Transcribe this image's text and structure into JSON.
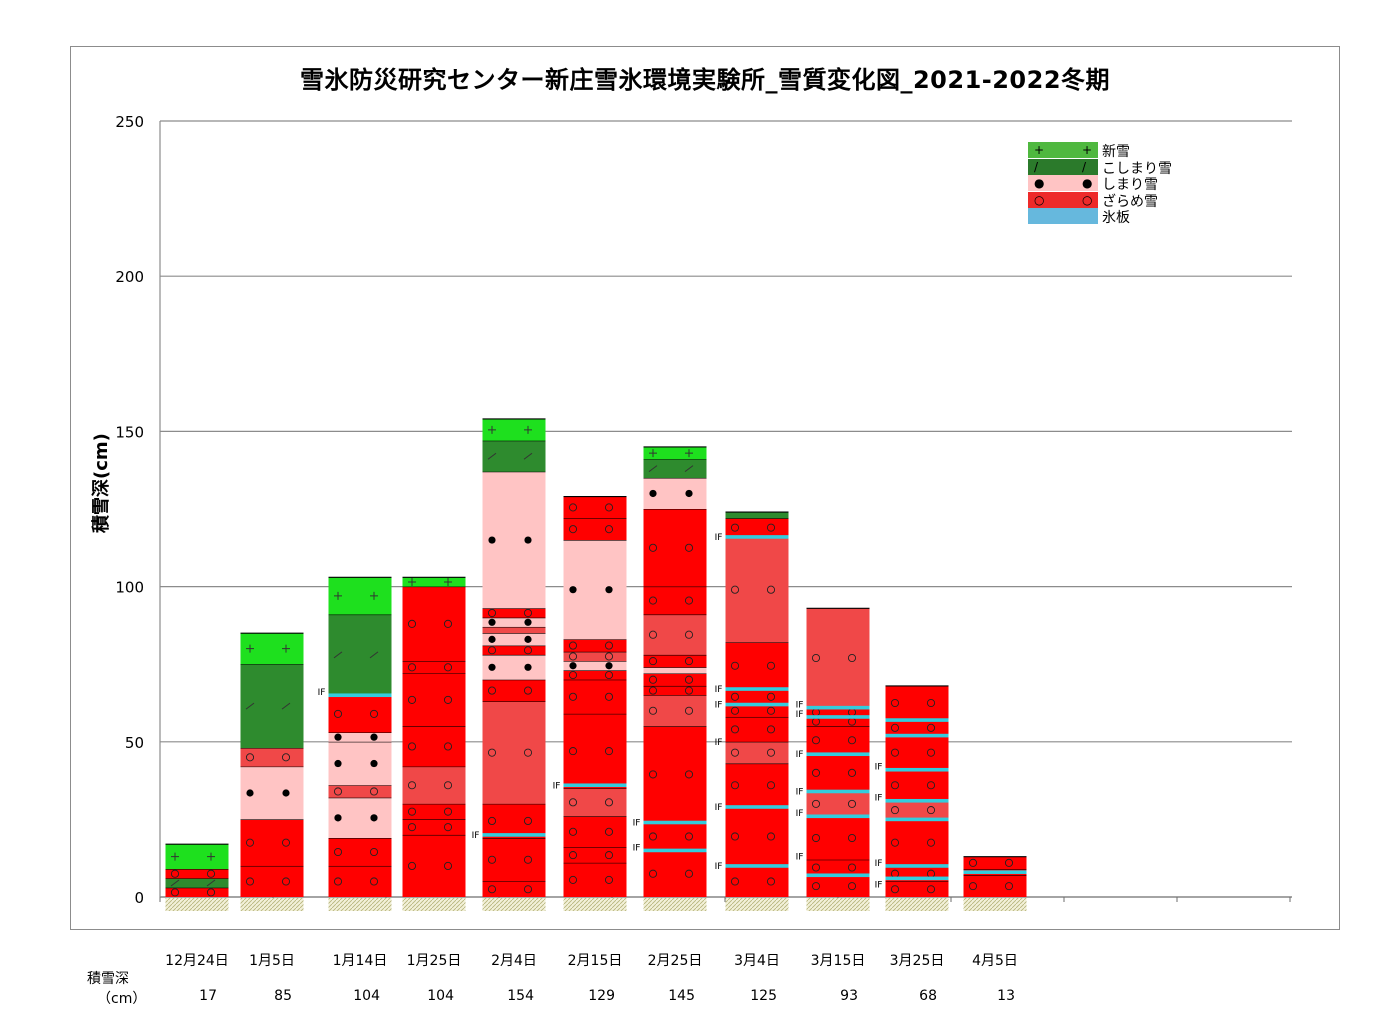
{
  "title": "雪氷防災研究センター新庄雪氷環境実験所_雪質変化図_2021-2022冬期",
  "chart_data": {
    "type": "bar",
    "subtype": "stacked snow-profile columns",
    "ylabel": "積雪深(cm)",
    "ylim": [
      0,
      250
    ],
    "yticks": [
      0,
      50,
      100,
      150,
      200,
      250
    ],
    "grid": true,
    "legend_position": "top-right",
    "categories": [
      "12月24日",
      "1月5日",
      "1月14日",
      "1月25日",
      "2月4日",
      "2月15日",
      "2月25日",
      "3月4日",
      "3月15日",
      "3月25日",
      "4月5日"
    ],
    "depth_row_label": "積雪深",
    "depth_row_unit": "（cm）",
    "depths": [
      17,
      85,
      104,
      104,
      154,
      129,
      145,
      125,
      93,
      68,
      13
    ],
    "layer_types": [
      {
        "key": "shinsetsu",
        "name": "新雪",
        "color": "#33cc33",
        "symbol": "+"
      },
      {
        "key": "koshimari",
        "name": "こしまり雪",
        "color": "#2e8b2e",
        "symbol": "/"
      },
      {
        "key": "shimari",
        "name": "しまり雪",
        "color": "#ffc4c4",
        "symbol": "●"
      },
      {
        "key": "zarame",
        "name": "ざらめ雪",
        "color": "#ff0000",
        "symbol": "○"
      },
      {
        "key": "hyoban",
        "name": "氷板",
        "color": "#66b8dd",
        "symbol": ""
      }
    ],
    "profiles": [
      {
        "date": "12月24日",
        "layers": [
          [
            0,
            3,
            "zarame"
          ],
          [
            3,
            6,
            "koshimari"
          ],
          [
            6,
            9,
            "zarame"
          ],
          [
            9,
            17,
            "shinsetsu"
          ]
        ],
        "ice": [],
        "if_marks": []
      },
      {
        "date": "1月5日",
        "layers": [
          [
            0,
            10,
            "zarame"
          ],
          [
            10,
            25,
            "zarame"
          ],
          [
            25,
            42,
            "shimari"
          ],
          [
            42,
            48,
            "zarame"
          ],
          [
            48,
            75,
            "koshimari"
          ],
          [
            75,
            85,
            "shinsetsu"
          ]
        ],
        "ice": [],
        "if_marks": []
      },
      {
        "date": "1月14日",
        "layers": [
          [
            0,
            10,
            "zarame"
          ],
          [
            10,
            19,
            "zarame"
          ],
          [
            19,
            32,
            "shimari"
          ],
          [
            32,
            36,
            "zarame"
          ],
          [
            36,
            50,
            "shimari"
          ],
          [
            50,
            53,
            "shimari"
          ],
          [
            53,
            65,
            "zarame"
          ],
          [
            65,
            91,
            "koshimari"
          ],
          [
            91,
            103,
            "shinsetsu"
          ]
        ],
        "ice": [
          65
        ],
        "if_marks": [
          66
        ]
      },
      {
        "date": "1月25日",
        "layers": [
          [
            0,
            20,
            "zarame"
          ],
          [
            20,
            25,
            "zarame"
          ],
          [
            25,
            30,
            "zarame"
          ],
          [
            30,
            42,
            "zarame"
          ],
          [
            42,
            55,
            "zarame"
          ],
          [
            55,
            72,
            "zarame"
          ],
          [
            72,
            76,
            "zarame"
          ],
          [
            76,
            100,
            "zarame"
          ],
          [
            100,
            103,
            "shinsetsu"
          ]
        ],
        "ice": [],
        "if_marks": []
      },
      {
        "date": "2月4日",
        "layers": [
          [
            0,
            5,
            "zarame"
          ],
          [
            5,
            19,
            "zarame"
          ],
          [
            19,
            30,
            "zarame"
          ],
          [
            30,
            63,
            "zarame"
          ],
          [
            63,
            70,
            "zarame"
          ],
          [
            70,
            78,
            "shimari"
          ],
          [
            78,
            81,
            "zarame"
          ],
          [
            81,
            85,
            "shimari"
          ],
          [
            85,
            87,
            "zarame"
          ],
          [
            87,
            90,
            "shimari"
          ],
          [
            90,
            93,
            "zarame"
          ],
          [
            93,
            137,
            "shimari"
          ],
          [
            137,
            147,
            "koshimari"
          ],
          [
            147,
            154,
            "shinsetsu"
          ]
        ],
        "ice": [
          20
        ],
        "if_marks": [
          20
        ]
      },
      {
        "date": "2月15日",
        "layers": [
          [
            0,
            11,
            "zarame"
          ],
          [
            11,
            16,
            "zarame"
          ],
          [
            16,
            26,
            "zarame"
          ],
          [
            26,
            35,
            "zarame"
          ],
          [
            35,
            59,
            "zarame"
          ],
          [
            59,
            70,
            "zarame"
          ],
          [
            70,
            73,
            "zarame"
          ],
          [
            73,
            76,
            "shimari"
          ],
          [
            76,
            79,
            "zarame"
          ],
          [
            79,
            83,
            "zarame"
          ],
          [
            83,
            115,
            "shimari"
          ],
          [
            115,
            122,
            "zarame"
          ],
          [
            122,
            129,
            "zarame"
          ]
        ],
        "ice": [
          36
        ],
        "if_marks": [
          36
        ]
      },
      {
        "date": "2月25日",
        "layers": [
          [
            0,
            15,
            "zarame"
          ],
          [
            15,
            24,
            "zarame"
          ],
          [
            24,
            55,
            "zarame"
          ],
          [
            55,
            65,
            "zarame"
          ],
          [
            65,
            68,
            "zarame"
          ],
          [
            68,
            72,
            "zarame"
          ],
          [
            72,
            74,
            "shimari"
          ],
          [
            74,
            78,
            "zarame"
          ],
          [
            78,
            91,
            "zarame"
          ],
          [
            91,
            100,
            "zarame"
          ],
          [
            100,
            125,
            "zarame"
          ],
          [
            125,
            135,
            "shimari"
          ],
          [
            135,
            141,
            "koshimari"
          ],
          [
            141,
            145,
            "shinsetsu"
          ]
        ],
        "ice": [
          15,
          24
        ],
        "if_marks": [
          16,
          24
        ]
      },
      {
        "date": "3月4日",
        "layers": [
          [
            0,
            10,
            "zarame"
          ],
          [
            10,
            29,
            "zarame"
          ],
          [
            29,
            43,
            "zarame"
          ],
          [
            43,
            50,
            "zarame"
          ],
          [
            50,
            58,
            "zarame"
          ],
          [
            58,
            62,
            "zarame"
          ],
          [
            62,
            67,
            "zarame"
          ],
          [
            67,
            82,
            "zarame"
          ],
          [
            82,
            116,
            "zarame"
          ],
          [
            116,
            122,
            "zarame"
          ],
          [
            122,
            124,
            "koshimari"
          ]
        ],
        "ice": [
          10,
          29,
          62,
          67,
          116
        ],
        "if_marks": [
          10,
          29,
          50,
          62,
          67,
          116
        ]
      },
      {
        "date": "3月15日",
        "layers": [
          [
            0,
            7,
            "zarame"
          ],
          [
            7,
            12,
            "zarame"
          ],
          [
            12,
            26,
            "zarame"
          ],
          [
            26,
            34,
            "zarame"
          ],
          [
            34,
            46,
            "zarame"
          ],
          [
            46,
            55,
            "zarame"
          ],
          [
            55,
            58,
            "zarame"
          ],
          [
            58,
            61,
            "zarame"
          ],
          [
            61,
            93,
            "zarame"
          ]
        ],
        "ice": [
          7,
          26,
          34,
          46,
          58,
          61
        ],
        "if_marks": [
          13,
          27,
          34,
          46,
          59,
          62
        ]
      },
      {
        "date": "3月25日",
        "layers": [
          [
            0,
            5,
            "zarame"
          ],
          [
            5,
            10,
            "zarame"
          ],
          [
            10,
            25,
            "zarame"
          ],
          [
            25,
            31,
            "zarame"
          ],
          [
            31,
            41,
            "zarame"
          ],
          [
            41,
            52,
            "zarame"
          ],
          [
            52,
            57,
            "zarame"
          ],
          [
            57,
            68,
            "zarame"
          ]
        ],
        "ice": [
          6,
          10,
          25,
          31,
          41,
          52,
          57
        ],
        "if_marks": [
          4,
          11,
          32,
          42
        ]
      },
      {
        "date": "4月5日",
        "layers": [
          [
            0,
            7,
            "zarame"
          ],
          [
            7,
            9,
            "zarame"
          ],
          [
            9,
            13,
            "zarame"
          ]
        ],
        "ice": [
          8
        ],
        "if_marks": []
      }
    ]
  }
}
